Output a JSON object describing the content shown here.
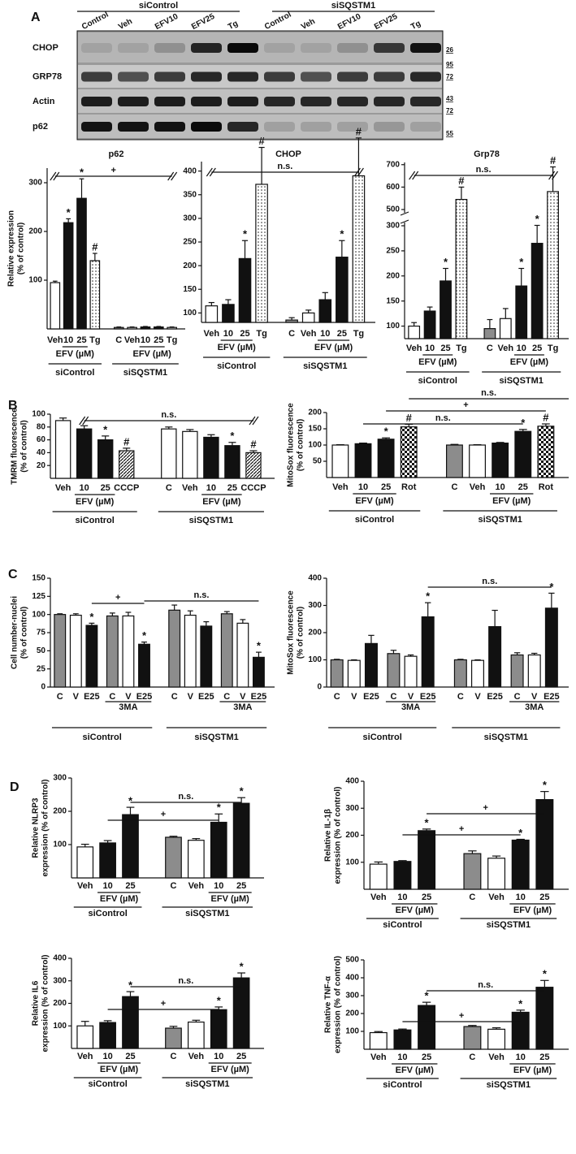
{
  "panel_labels": [
    "A",
    "B",
    "C",
    "D"
  ],
  "blot": {
    "groups": [
      "siControl",
      "siSQSTM1"
    ],
    "lanes": [
      "Control",
      "Veh",
      "EFV10",
      "EFV25",
      "Tg",
      "Control",
      "Veh",
      "EFV10",
      "EFV25",
      "Tg"
    ],
    "rows": [
      "CHOP",
      "GRP78",
      "Actin",
      "p62"
    ],
    "size_markers": [
      26,
      95,
      72,
      43,
      72,
      55
    ]
  },
  "chart_data": [
    {
      "type": "bar",
      "title": "p62",
      "ylabel": [
        "Relative expression",
        "(% of control)"
      ],
      "categories": [
        "Veh",
        "10",
        "25",
        "Tg",
        "C",
        "Veh",
        "10",
        "25",
        "Tg"
      ],
      "values": [
        95,
        218,
        268,
        140,
        3,
        3,
        4,
        4,
        3
      ],
      "errors": [
        3,
        8,
        40,
        15,
        1,
        1,
        1,
        1,
        1
      ],
      "fills": [
        "white",
        "black",
        "black",
        "dotted",
        "gray",
        "white",
        "black",
        "black",
        "dotted"
      ],
      "markers": [
        null,
        "*",
        "*",
        "#",
        null,
        null,
        null,
        null,
        null
      ],
      "ylim": [
        0,
        330
      ],
      "yticks": [
        100,
        200,
        300
      ],
      "sublabel": "EFV (µM)",
      "groups": [
        "siControl",
        "siSQSTM1"
      ],
      "brackets": [
        "+"
      ]
    },
    {
      "type": "bar",
      "title": "CHOP",
      "categories": [
        "Veh",
        "10",
        "25",
        "Tg",
        "C",
        "Veh",
        "10",
        "25",
        "Tg"
      ],
      "values": [
        115,
        118,
        215,
        372,
        85,
        100,
        128,
        218,
        390
      ],
      "errors": [
        7,
        10,
        38,
        78,
        5,
        6,
        15,
        35,
        80
      ],
      "fills": [
        "white",
        "black",
        "black",
        "dotted",
        "gray",
        "white",
        "black",
        "black",
        "dotted"
      ],
      "markers": [
        null,
        null,
        "*",
        "#",
        null,
        null,
        null,
        "*",
        "#"
      ],
      "ylim": [
        80,
        420
      ],
      "yticks": [
        100,
        150,
        200,
        250,
        300,
        350,
        400
      ],
      "sublabel": "EFV (µM)",
      "groups": [
        "siControl",
        "siSQSTM1"
      ],
      "brackets": [
        "n.s."
      ]
    },
    {
      "type": "bar",
      "title": "Grp78",
      "categories": [
        "Veh",
        "10",
        "25",
        "Tg",
        "C",
        "Veh",
        "10",
        "25",
        "Tg"
      ],
      "values": [
        100,
        130,
        190,
        545,
        95,
        115,
        180,
        265,
        580
      ],
      "errors": [
        7,
        8,
        25,
        55,
        18,
        20,
        35,
        40,
        110
      ],
      "fills": [
        "white",
        "black",
        "black",
        "dotted",
        "gray",
        "white",
        "black",
        "black",
        "dotted"
      ],
      "markers": [
        null,
        null,
        "*",
        "#",
        null,
        null,
        "*",
        "*",
        "#"
      ],
      "ylim": [
        75,
        710
      ],
      "y_break": [
        300,
        500
      ],
      "yticks": [
        100,
        150,
        200,
        250,
        300,
        500,
        600,
        700
      ],
      "sublabel": "EFV (µM)",
      "groups": [
        "siControl",
        "siSQSTM1"
      ],
      "brackets": [
        "n.s."
      ]
    },
    {
      "type": "bar",
      "ylabel": [
        "TMRM fluorescence",
        "(% of control)"
      ],
      "categories": [
        "Veh",
        "10",
        "25",
        "CCCP",
        "C",
        "Veh",
        "10",
        "25",
        "CCCP"
      ],
      "values": [
        90,
        77,
        60,
        43,
        77,
        73,
        64,
        51,
        40
      ],
      "errors": [
        4,
        5,
        6,
        4,
        3,
        3,
        4,
        5,
        3
      ],
      "fills": [
        "white",
        "black",
        "black",
        "hatched",
        "white",
        "white",
        "black",
        "black",
        "hatched"
      ],
      "markers": [
        null,
        null,
        "*",
        "#",
        null,
        null,
        null,
        "*",
        "#"
      ],
      "ylim": [
        0,
        100
      ],
      "yticks": [
        20,
        40,
        60,
        80,
        100
      ],
      "sublabel": "EFV (µM)",
      "groups": [
        "siControl",
        "siSQSTM1"
      ],
      "brackets": [
        "n.s."
      ]
    },
    {
      "type": "bar",
      "ylabel": [
        "MitoSox fluorescence",
        "(% of control)"
      ],
      "categories": [
        "Veh",
        "10",
        "25",
        "Rot",
        "C",
        "Veh",
        "10",
        "25",
        "Rot"
      ],
      "values": [
        100,
        104,
        118,
        156,
        100,
        100,
        106,
        142,
        158
      ],
      "errors": [
        1,
        2,
        4,
        8,
        2,
        1,
        2,
        6,
        7
      ],
      "fills": [
        "white",
        "black",
        "black",
        "checker",
        "gray",
        "white",
        "black",
        "black",
        "checker"
      ],
      "markers": [
        null,
        null,
        "*",
        "#",
        null,
        null,
        null,
        "*",
        "#"
      ],
      "ylim": [
        0,
        200
      ],
      "yticks": [
        50,
        100,
        150,
        200
      ],
      "sublabel": "EFV (µM)",
      "groups": [
        "siControl",
        "siSQSTM1"
      ],
      "brackets": [
        "n.s.",
        "+",
        "n.s."
      ]
    },
    {
      "type": "bar",
      "ylabel": [
        "Cell number-nuclei",
        "(% of control)"
      ],
      "categories": [
        "C",
        "V",
        "E25",
        "C",
        "V",
        "E25",
        "C",
        "V",
        "E25",
        "C",
        "V",
        "E25"
      ],
      "values": [
        100,
        99,
        85,
        98,
        98,
        59,
        106,
        99,
        84,
        101,
        88,
        41
      ],
      "errors": [
        1,
        2,
        3,
        4,
        5,
        3,
        7,
        6,
        6,
        3,
        5,
        7
      ],
      "fills": [
        "gray",
        "white",
        "black",
        "gray",
        "white",
        "black",
        "gray",
        "white",
        "black",
        "gray",
        "white",
        "black"
      ],
      "markers": [
        null,
        null,
        "*",
        null,
        null,
        "*",
        null,
        null,
        null,
        null,
        null,
        "*"
      ],
      "ylim": [
        0,
        150
      ],
      "yticks": [
        0,
        25,
        50,
        75,
        100,
        125,
        150
      ],
      "sublabel": "3MA",
      "groups": [
        "siControl",
        "siSQSTM1"
      ],
      "brackets": [
        "+",
        "n.s."
      ]
    },
    {
      "type": "bar",
      "ylabel": [
        "MitoSox fluorescence",
        "(% of control)"
      ],
      "categories": [
        "C",
        "V",
        "E25",
        "C",
        "V",
        "E25",
        "C",
        "V",
        "E25",
        "C",
        "V",
        "E25"
      ],
      "values": [
        100,
        98,
        160,
        123,
        113,
        258,
        100,
        98,
        222,
        118,
        118,
        290
      ],
      "errors": [
        2,
        2,
        30,
        12,
        5,
        52,
        2,
        2,
        60,
        8,
        6,
        55
      ],
      "fills": [
        "gray",
        "white",
        "black",
        "gray",
        "white",
        "black",
        "gray",
        "white",
        "black",
        "gray",
        "white",
        "black"
      ],
      "markers": [
        null,
        null,
        null,
        null,
        null,
        "*",
        null,
        null,
        null,
        null,
        null,
        "*"
      ],
      "ylim": [
        0,
        400
      ],
      "yticks": [
        0,
        100,
        200,
        300,
        400
      ],
      "sublabel": "3MA",
      "groups": [
        "siControl",
        "siSQSTM1"
      ],
      "brackets": [
        "n.s."
      ]
    },
    {
      "type": "bar",
      "ylabel": [
        "Relative NLRP3",
        "expression (% of control)"
      ],
      "categories": [
        "Veh",
        "10",
        "25",
        "C",
        "Veh",
        "10",
        "25"
      ],
      "values": [
        93,
        105,
        190,
        122,
        113,
        167,
        224
      ],
      "errors": [
        8,
        7,
        22,
        3,
        5,
        25,
        17
      ],
      "fills": [
        "white",
        "black",
        "black",
        "gray",
        "white",
        "black",
        "black"
      ],
      "markers": [
        null,
        null,
        "*",
        null,
        null,
        "*",
        "*"
      ],
      "ylim": [
        0,
        300
      ],
      "yticks": [
        100,
        200,
        300
      ],
      "sublabel": "EFV (µM)",
      "groups": [
        "siControl",
        "siSQSTM1"
      ],
      "brackets": [
        "+",
        "n.s."
      ]
    },
    {
      "type": "bar",
      "ylabel": [
        "Relative IL-1β",
        "expression (% of control)"
      ],
      "categories": [
        "Veh",
        "10",
        "25",
        "C",
        "Veh",
        "10",
        "25"
      ],
      "values": [
        93,
        103,
        217,
        132,
        115,
        182,
        332
      ],
      "errors": [
        8,
        3,
        6,
        10,
        8,
        3,
        30
      ],
      "fills": [
        "white",
        "black",
        "black",
        "gray",
        "white",
        "black",
        "black"
      ],
      "markers": [
        null,
        null,
        "*",
        null,
        null,
        "*",
        "*"
      ],
      "ylim": [
        0,
        400
      ],
      "yticks": [
        100,
        200,
        300,
        400
      ],
      "sublabel": "EFV (µM)",
      "groups": [
        "siControl",
        "siSQSTM1"
      ],
      "brackets": [
        "+",
        "+"
      ]
    },
    {
      "type": "bar",
      "ylabel": [
        "Relative IL6",
        "expression (% of control)"
      ],
      "categories": [
        "Veh",
        "10",
        "25",
        "C",
        "Veh",
        "10",
        "25"
      ],
      "values": [
        100,
        115,
        230,
        90,
        117,
        172,
        313
      ],
      "errors": [
        20,
        8,
        22,
        8,
        8,
        12,
        22
      ],
      "fills": [
        "white",
        "black",
        "black",
        "gray",
        "white",
        "black",
        "black"
      ],
      "markers": [
        null,
        null,
        "*",
        null,
        null,
        "*",
        "*"
      ],
      "ylim": [
        0,
        400
      ],
      "yticks": [
        100,
        200,
        300,
        400
      ],
      "sublabel": "EFV (µM)",
      "groups": [
        "siControl",
        "siSQSTM1"
      ],
      "brackets": [
        "+",
        "n.s."
      ]
    },
    {
      "type": "bar",
      "ylabel": [
        "Relative TNF-α",
        "expression (% of control)"
      ],
      "categories": [
        "Veh",
        "10",
        "25",
        "C",
        "Veh",
        "10",
        "25"
      ],
      "values": [
        93,
        108,
        245,
        127,
        112,
        207,
        347
      ],
      "errors": [
        6,
        5,
        18,
        6,
        8,
        12,
        38
      ],
      "fills": [
        "white",
        "black",
        "black",
        "gray",
        "white",
        "black",
        "black"
      ],
      "markers": [
        null,
        null,
        "*",
        null,
        null,
        "*",
        "*"
      ],
      "ylim": [
        0,
        500
      ],
      "yticks": [
        100,
        200,
        300,
        400,
        500
      ],
      "sublabel": "EFV (µM)",
      "groups": [
        "siControl",
        "siSQSTM1"
      ],
      "brackets": [
        "+",
        "n.s."
      ]
    }
  ]
}
